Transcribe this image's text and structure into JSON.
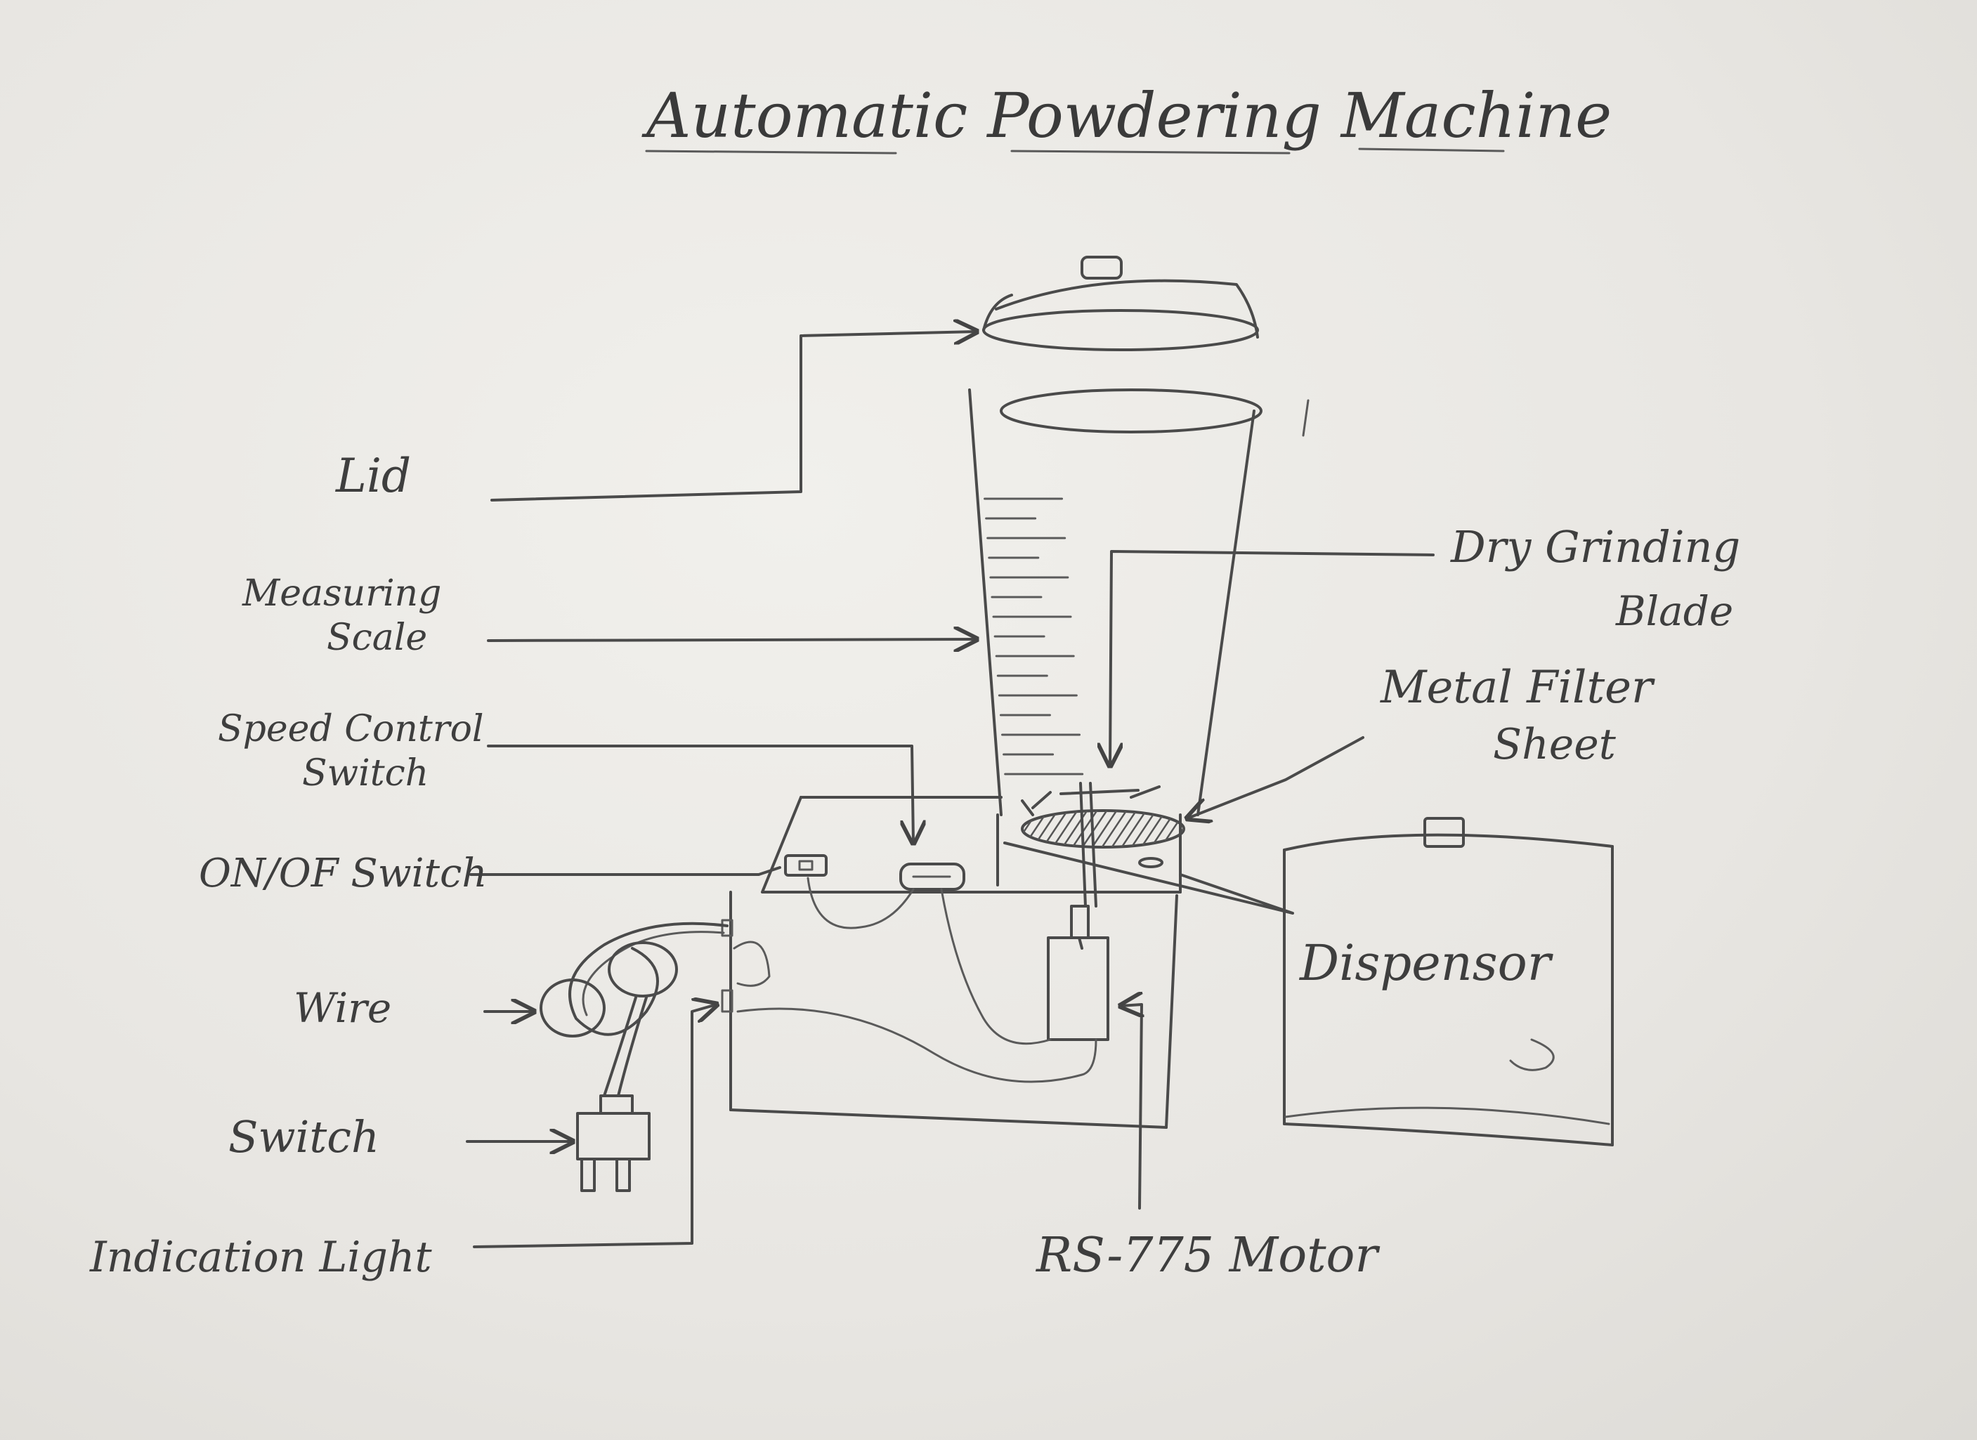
{
  "title": "Automatic Powdering Machine",
  "labels": {
    "lid": "Lid",
    "measuring_scale_1": "Measuring",
    "measuring_scale_2": "Scale",
    "speed_control_1": "Speed Control",
    "speed_control_2": "Switch",
    "on_off": "ON/OF Switch",
    "wire": "Wire",
    "switch": "Switch",
    "indication_light": "Indication Light",
    "dry_grinding_1": "Dry Grinding",
    "dry_grinding_2": "Blade",
    "metal_filter_1": "Metal Filter",
    "metal_filter_2": "Sheet",
    "dispensor": "Dispensor",
    "motor": "RS-775 Motor"
  },
  "colors": {
    "ink": "#4a4a4a",
    "paper": "#ecebe7"
  }
}
